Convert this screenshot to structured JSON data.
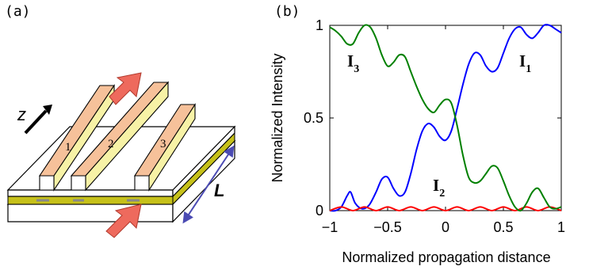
{
  "panel_a": {
    "label": "(a)",
    "waveguide_labels": [
      "1",
      "2",
      "3"
    ],
    "z_label": "z",
    "length_label": "L",
    "colors": {
      "waveguide_1": "#f6c19a",
      "waveguide_2_side": "#f7f2a6",
      "film": "#c6c11a",
      "arrow": "#ee6a5d",
      "length_arrow": "#4b4bb3"
    }
  },
  "panel_b": {
    "label": "(b)",
    "series_labels": {
      "I1": {
        "main": "I",
        "sub": "1"
      },
      "I2": {
        "main": "I",
        "sub": "2"
      },
      "I3": {
        "main": "I",
        "sub": "3"
      }
    }
  },
  "chart_data": {
    "type": "line",
    "title": "",
    "xlabel": "Normalized propagation distance",
    "ylabel": "Normalized Intensity",
    "xlim": [
      -1,
      1
    ],
    "ylim": [
      0,
      1
    ],
    "xticks": [
      -1,
      -0.5,
      0,
      0.5,
      1
    ],
    "xtick_labels": [
      "−1",
      "−0.5",
      "0",
      "0.5",
      "1"
    ],
    "yticks": [
      0,
      0.5,
      1
    ],
    "ytick_labels": [
      "0",
      "0.5",
      "1"
    ],
    "grid": false,
    "series": [
      {
        "name": "I1",
        "color": "#0000ff",
        "x": [
          -1,
          -0.95,
          -0.9,
          -0.85,
          -0.82,
          -0.78,
          -0.72,
          -0.66,
          -0.6,
          -0.55,
          -0.5,
          -0.45,
          -0.4,
          -0.35,
          -0.3,
          -0.25,
          -0.2,
          -0.15,
          -0.1,
          -0.05,
          0,
          0.05,
          0.1,
          0.15,
          0.2,
          0.25,
          0.3,
          0.35,
          0.4,
          0.45,
          0.5,
          0.55,
          0.6,
          0.65,
          0.7,
          0.75,
          0.8,
          0.85,
          0.9,
          0.95,
          1
        ],
        "y": [
          0.0,
          0.0,
          0.02,
          0.08,
          0.1,
          0.04,
          0.01,
          0.03,
          0.1,
          0.17,
          0.18,
          0.12,
          0.08,
          0.1,
          0.2,
          0.33,
          0.43,
          0.47,
          0.45,
          0.4,
          0.38,
          0.43,
          0.55,
          0.68,
          0.79,
          0.85,
          0.84,
          0.78,
          0.75,
          0.77,
          0.85,
          0.93,
          0.98,
          0.99,
          0.95,
          0.93,
          0.96,
          1.0,
          1.0,
          0.98,
          0.96
        ]
      },
      {
        "name": "I2",
        "color": "#ff0000",
        "x": [
          -1,
          -0.9,
          -0.8,
          -0.7,
          -0.6,
          -0.5,
          -0.4,
          -0.3,
          -0.2,
          -0.1,
          0,
          0.1,
          0.2,
          0.3,
          0.4,
          0.5,
          0.6,
          0.7,
          0.8,
          0.9,
          1
        ],
        "y": [
          0.0,
          0.02,
          0.0,
          0.02,
          0.0,
          0.02,
          0.0,
          0.02,
          0.0,
          0.02,
          0.0,
          0.02,
          0.0,
          0.02,
          0.0,
          0.02,
          0.0,
          0.02,
          0.0,
          0.02,
          0.0
        ]
      },
      {
        "name": "I3",
        "color": "#008000",
        "x": [
          -1,
          -0.95,
          -0.9,
          -0.85,
          -0.8,
          -0.75,
          -0.7,
          -0.65,
          -0.6,
          -0.55,
          -0.5,
          -0.45,
          -0.4,
          -0.35,
          -0.3,
          -0.25,
          -0.2,
          -0.15,
          -0.1,
          -0.05,
          0,
          0.05,
          0.1,
          0.15,
          0.2,
          0.25,
          0.3,
          0.35,
          0.4,
          0.45,
          0.5,
          0.55,
          0.6,
          0.65,
          0.7,
          0.75,
          0.8,
          0.85,
          0.9,
          0.95,
          1
        ],
        "y": [
          0.99,
          0.97,
          0.94,
          0.9,
          0.9,
          0.96,
          1.0,
          0.99,
          0.93,
          0.84,
          0.78,
          0.8,
          0.84,
          0.83,
          0.75,
          0.67,
          0.6,
          0.55,
          0.53,
          0.57,
          0.6,
          0.58,
          0.46,
          0.3,
          0.18,
          0.15,
          0.16,
          0.2,
          0.24,
          0.23,
          0.16,
          0.08,
          0.02,
          0.0,
          0.04,
          0.1,
          0.12,
          0.07,
          0.02,
          0.01,
          0.02
        ]
      }
    ]
  }
}
